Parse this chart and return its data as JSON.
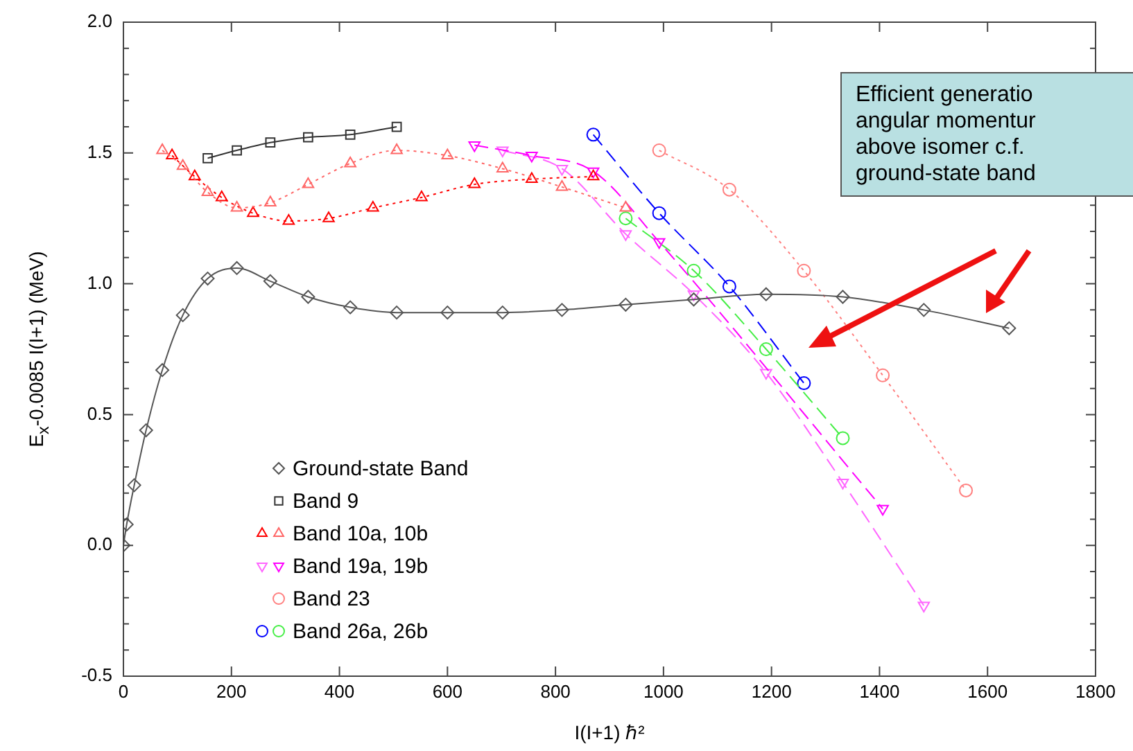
{
  "chart_data": {
    "type": "line",
    "xlabel": "I(I+1) ℏ²",
    "ylabel": "E$_{x}$-0.0085 I(I+1) (MeV)",
    "xlim": [
      0,
      1800
    ],
    "xticks": [
      0,
      200,
      400,
      600,
      800,
      1000,
      1200,
      1400,
      1600,
      1800
    ],
    "ylim": [
      -0.5,
      2.0
    ],
    "yticks": [
      "-0.5",
      {
        "value": -0.4,
        "label": null
      },
      {
        "value": -0.3,
        "label": null
      },
      {
        "value": -0.2,
        "label": null
      },
      {
        "value": -0.1,
        "label": null
      },
      {
        "value": 0,
        "label": "0.0"
      },
      {
        "value": 0.1,
        "label": null
      },
      {
        "value": 0.2,
        "label": null
      },
      {
        "value": 0.3,
        "label": null
      },
      {
        "value": 0.4,
        "label": null
      },
      0.5,
      {
        "value": 0.6,
        "label": null
      },
      {
        "value": 0.7,
        "label": null
      },
      {
        "value": 0.8,
        "label": null
      },
      {
        "value": 0.9,
        "label": null
      },
      {
        "value": 1,
        "label": "1.0"
      },
      {
        "value": 1.1,
        "label": null
      },
      {
        "value": 1.2,
        "label": null
      },
      {
        "value": 1.3,
        "label": null
      },
      {
        "value": 1.4,
        "label": null
      },
      1.5,
      {
        "value": 1.6,
        "label": null
      },
      {
        "value": 1.7,
        "label": null
      },
      {
        "value": 1.8,
        "label": null
      },
      {
        "value": 1.9,
        "label": null
      },
      {
        "value": 2,
        "label": "2.0"
      }
    ],
    "grid": false,
    "legend": "bottom left",
    "annotations": [
      "Efficient generatio\nangular momentur\nabove isomer c.f.\nground-state band"
    ],
    "series": [
      {
        "name": "Ground-state Band",
        "color": "#555555",
        "marker": "diamond",
        "line_style": "solid",
        "x": [
          0,
          6,
          20,
          42,
          72,
          110,
          156,
          210,
          272,
          342,
          420,
          506,
          600,
          702,
          812,
          930,
          1056,
          1190,
          1332,
          1482,
          1640
        ],
        "values": [
          0,
          0.08,
          0.23,
          0.44,
          0.67,
          0.88,
          1.02,
          1.06,
          1.01,
          0.95,
          0.91,
          0.89,
          0.89,
          0.89,
          0.9,
          0.92,
          0.94,
          0.96,
          0.95,
          0.9,
          0.83
        ]
      },
      {
        "name": "Band 9",
        "color": "#333333",
        "marker": "square",
        "line_style": "solid",
        "x": [
          156,
          210,
          272,
          342,
          420,
          506
        ],
        "values": [
          1.48,
          1.51,
          1.54,
          1.56,
          1.57,
          1.6
        ]
      },
      {
        "name": "Band 10a, 10b",
        "color": "#ff6666",
        "marker": "triangle",
        "line_style": "dotted",
        "x": [
          72,
          110,
          156,
          210,
          272,
          342,
          420,
          506,
          600,
          702,
          812,
          930
        ],
        "values": [
          1.51,
          1.45,
          1.35,
          1.29,
          1.31,
          1.38,
          1.46,
          1.51,
          1.49,
          1.44,
          1.37,
          1.29
        ]
      },
      {
        "color": "#ff0000",
        "marker": "triangle",
        "line_style": "dotted",
        "x": [
          90,
          132,
          182,
          240,
          306,
          380,
          462,
          552,
          650,
          756,
          870
        ],
        "values": [
          1.49,
          1.41,
          1.33,
          1.27,
          1.24,
          1.25,
          1.29,
          1.33,
          1.38,
          1.4,
          1.41
        ]
      },
      {
        "name": "Band 19a, 19b",
        "color": "#ff00ff",
        "marker": "triangle_down",
        "line_style": "dashed",
        "x": [
          650,
          756,
          870,
          992,
          1406
        ],
        "values": [
          1.53,
          1.49,
          1.43,
          1.16,
          0.14
        ]
      },
      {
        "color": "#ff66ff",
        "marker": "triangle_down",
        "line_style": "dashed",
        "x": [
          702,
          812,
          930,
          1056,
          1190,
          1332,
          1482
        ],
        "values": [
          1.51,
          1.44,
          1.19,
          0.96,
          0.66,
          0.24,
          -0.23
        ]
      },
      {
        "name": "Band 23",
        "color": "#ff7f7f",
        "marker": "circle",
        "line_style": "dotted",
        "x": [
          992,
          1122,
          1260,
          1406,
          1560
        ],
        "values": [
          1.51,
          1.36,
          1.05,
          0.65,
          0.21
        ]
      },
      {
        "name": "Band 26a, 26b",
        "color": "#44ee44",
        "marker": "circle",
        "line_style": "dashed",
        "x": [
          930,
          1056,
          1190,
          1332
        ],
        "values": [
          1.25,
          1.05,
          0.75,
          0.41
        ]
      },
      {
        "color": "#0000ff",
        "marker": "circle",
        "line_style": "dashed",
        "x": [
          870,
          992,
          1122,
          1260
        ],
        "values": [
          1.57,
          1.27,
          0.99,
          0.62
        ]
      }
    ]
  }
}
